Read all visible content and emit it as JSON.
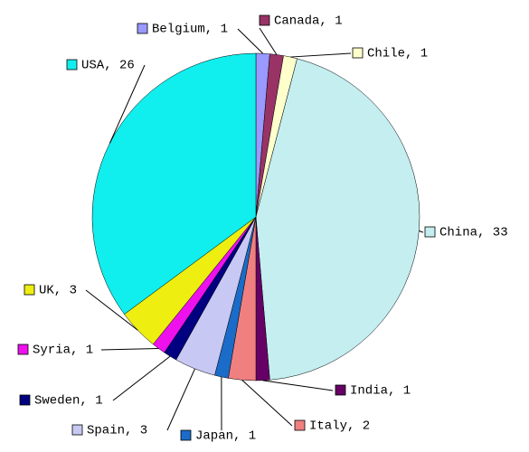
{
  "chart_data": {
    "type": "pie",
    "values": [
      1,
      1,
      1,
      33,
      1,
      2,
      1,
      3,
      1,
      1,
      3,
      26
    ],
    "value_labels": [
      "Belgium, 1",
      "Canada, 1",
      "Chile, 1",
      "China, 33",
      "India, 1",
      "Italy, 2",
      "Japan, 1",
      "Spain, 3",
      "Sweden, 1",
      "Syria, 1",
      "UK, 3",
      "USA, 26"
    ],
    "colors": [
      "#9999ff",
      "#993366",
      "#ffffcc",
      "#c4eef0",
      "#660066",
      "#f08080",
      "#1a6cc8",
      "#c8c8f4",
      "#000080",
      "#ee11ee",
      "#eeee11",
      "#11eeee"
    ]
  }
}
